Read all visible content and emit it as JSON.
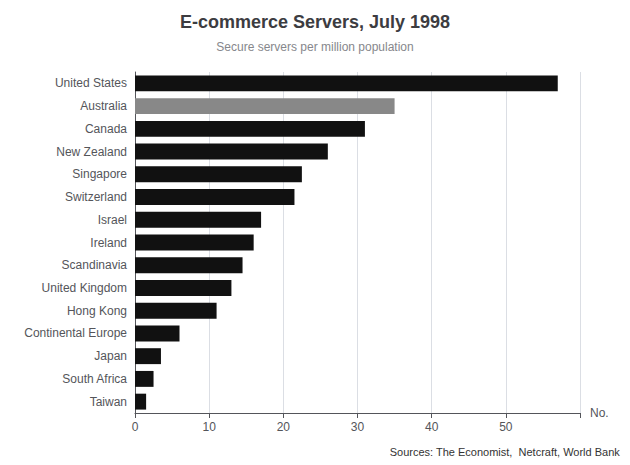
{
  "chart_data": {
    "type": "bar",
    "orientation": "horizontal",
    "title": "E-commerce Servers, July 1998",
    "subtitle": "Secure servers per million population",
    "xlabel": "No.",
    "source": "Sources: The Economist,  Netcraft, World Bank",
    "categories": [
      "Taiwan",
      "South Africa",
      "Japan",
      "Continental Europe",
      "Hong Kong",
      "United Kingdom",
      "Scandinavia",
      "Ireland",
      "Israel",
      "Switzerland",
      "Singapore",
      "New Zealand",
      "Canada",
      "Australia",
      "United States"
    ],
    "values": [
      1.5,
      2.5,
      3.5,
      6,
      11,
      13,
      14.5,
      16,
      17,
      21.5,
      22.5,
      26,
      31,
      35,
      57
    ],
    "colors": [
      "#111111",
      "#111111",
      "#111111",
      "#111111",
      "#111111",
      "#111111",
      "#111111",
      "#111111",
      "#111111",
      "#111111",
      "#111111",
      "#111111",
      "#111111",
      "#888888",
      "#111111"
    ],
    "xlim": [
      0,
      60
    ],
    "xticks": [
      0,
      10,
      20,
      30,
      40,
      50
    ],
    "grid": true
  }
}
